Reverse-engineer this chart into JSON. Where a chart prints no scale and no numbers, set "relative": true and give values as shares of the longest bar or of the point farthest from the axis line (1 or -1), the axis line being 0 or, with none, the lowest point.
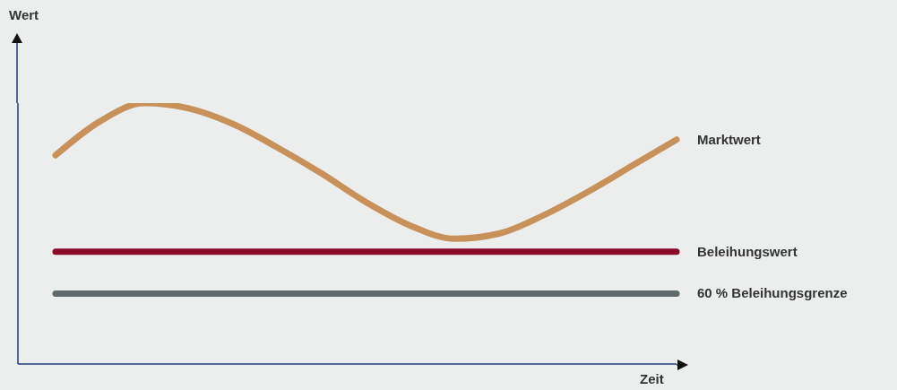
{
  "chart_data": {
    "type": "line",
    "relative": true,
    "xlabel": "Zeit",
    "annotations": [
      "Wert"
    ],
    "legend": false,
    "grid": false,
    "marker": "none",
    "line_style": "solid",
    "categories": [
      null,
      null,
      null,
      null,
      null,
      null,
      null,
      null,
      null,
      null,
      null,
      null,
      null,
      null,
      null
    ],
    "series": [
      {
        "name": "Marktwert",
        "color": "#c8915a",
        "values": [
          0.8,
          0.93,
          1.0,
          0.98,
          0.92,
          0.83,
          0.73,
          0.62,
          0.53,
          0.48,
          0.5,
          0.57,
          0.66,
          0.76,
          0.86
        ]
      },
      {
        "name": "Beleihungswert",
        "color": "#8b0a2a",
        "values": [
          0.43,
          0.43,
          0.43,
          0.43,
          0.43,
          0.43,
          0.43,
          0.43,
          0.43,
          0.43,
          0.43,
          0.43,
          0.43,
          0.43,
          0.43
        ]
      },
      {
        "name": "60 % Beleihungsgrenze",
        "color": "#5f6b6b",
        "values": [
          0.27,
          0.27,
          0.27,
          0.27,
          0.27,
          0.27,
          0.27,
          0.27,
          0.27,
          0.27,
          0.27,
          0.27,
          0.27,
          0.27,
          0.27
        ]
      }
    ]
  }
}
